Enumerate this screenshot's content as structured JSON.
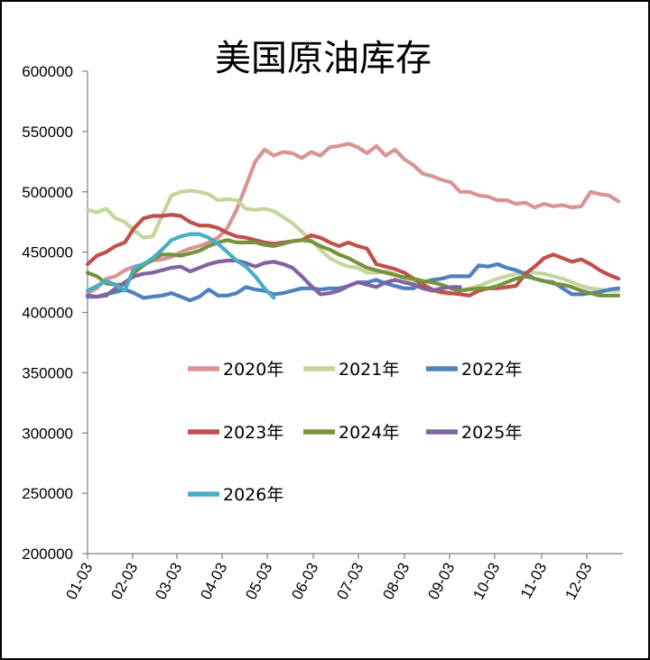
{
  "chart_data": {
    "type": "line",
    "title": "美国原油库存",
    "xlabel": "",
    "ylabel": "",
    "ylim": [
      200000,
      600000
    ],
    "yticks": [
      "600000",
      "550000",
      "500000",
      "450000",
      "400000",
      "350000",
      "300000",
      "250000",
      "200000"
    ],
    "xticks": [
      "01-03",
      "02-03",
      "03-03",
      "04-03",
      "05-03",
      "06-03",
      "07-03",
      "08-03",
      "09-03",
      "10-03",
      "11-03",
      "12-03"
    ],
    "grid": false,
    "legend_position": "center",
    "series": [
      {
        "name": "2020年",
        "color": "#d99594",
        "values": [
          416000,
          420000,
          428000,
          430000,
          435000,
          438000,
          440000,
          443000,
          444000,
          446000,
          450000,
          453000,
          455000,
          458000,
          462000,
          470000,
          485000,
          505000,
          525000,
          535000,
          530000,
          533000,
          532000,
          528000,
          533000,
          530000,
          537000,
          538000,
          540000,
          537000,
          532000,
          538000,
          530000,
          535000,
          527000,
          522000,
          515000,
          513000,
          510000,
          508000,
          500000,
          500000,
          497000,
          496000,
          493000,
          493000,
          490000,
          491000,
          487000,
          490000,
          488000,
          489000,
          487000,
          488000,
          500000,
          498000,
          497000,
          492000
        ]
      },
      {
        "name": "2021年",
        "color": "#c3d69b",
        "values": [
          485000,
          483000,
          486000,
          478000,
          475000,
          468000,
          462000,
          463000,
          480000,
          497000,
          500000,
          501000,
          500000,
          498000,
          493000,
          494000,
          493000,
          486000,
          485000,
          486000,
          484000,
          479000,
          474000,
          467000,
          460000,
          452000,
          445000,
          441000,
          438000,
          437000,
          433000,
          433000,
          434000,
          432000,
          428000,
          425000,
          420000,
          418000,
          416000,
          415000,
          418000,
          420000,
          422000,
          425000,
          428000,
          430000,
          432000,
          433000,
          433000,
          432000,
          430000,
          428000,
          425000,
          422000,
          420000,
          419000,
          418000,
          418000
        ]
      },
      {
        "name": "2022年",
        "color": "#4f81bd",
        "values": [
          413000,
          413000,
          415000,
          417000,
          419000,
          416000,
          412000,
          413000,
          414000,
          416000,
          413000,
          410000,
          413000,
          419000,
          414000,
          414000,
          416000,
          421000,
          419000,
          418000,
          415000,
          416000,
          418000,
          420000,
          420000,
          419000,
          420000,
          420000,
          422000,
          425000,
          425000,
          427000,
          424000,
          422000,
          420000,
          420000,
          425000,
          427000,
          428000,
          430000,
          430000,
          430000,
          439000,
          438000,
          440000,
          437000,
          435000,
          432000,
          428000,
          426000,
          425000,
          420000,
          415000,
          415000,
          416000,
          417000,
          419000,
          420000
        ]
      },
      {
        "name": "2023年",
        "color": "#c0504d",
        "values": [
          440000,
          447000,
          450000,
          455000,
          458000,
          470000,
          478000,
          480000,
          480000,
          481000,
          480000,
          475000,
          472000,
          472000,
          470000,
          466000,
          463000,
          462000,
          460000,
          458000,
          457000,
          458000,
          459000,
          460000,
          464000,
          462000,
          458000,
          455000,
          458000,
          455000,
          453000,
          440000,
          438000,
          436000,
          433000,
          428000,
          423000,
          419000,
          417000,
          416000,
          415000,
          414000,
          418000,
          420000,
          420000,
          421000,
          422000,
          432000,
          438000,
          445000,
          448000,
          445000,
          442000,
          444000,
          440000,
          435000,
          431000,
          428000
        ]
      },
      {
        "name": "2024年",
        "color": "#77933c",
        "values": [
          433000,
          430000,
          424000,
          423000,
          423000,
          433000,
          439000,
          444000,
          448000,
          448000,
          447000,
          449000,
          451000,
          455000,
          458000,
          460000,
          458000,
          458000,
          458000,
          456000,
          455000,
          457000,
          459000,
          460000,
          459000,
          455000,
          452000,
          448000,
          445000,
          441000,
          437000,
          435000,
          433000,
          431000,
          429000,
          428000,
          426000,
          425000,
          423000,
          420000,
          418000,
          419000,
          420000,
          420000,
          422000,
          425000,
          428000,
          430000,
          428000,
          426000,
          424000,
          423000,
          421000,
          418000,
          416000,
          414000,
          414000,
          414000
        ]
      },
      {
        "name": "2025年",
        "color": "#8064a2",
        "values": [
          414000,
          413000,
          414000,
          420000,
          425000,
          430000,
          432000,
          433000,
          435000,
          437000,
          438000,
          434000,
          437000,
          440000,
          442000,
          443000,
          443000,
          441000,
          438000,
          441000,
          442000,
          440000,
          437000,
          430000,
          422000,
          415000,
          416000,
          418000,
          422000,
          425000,
          423000,
          421000,
          425000,
          427000,
          425000,
          423000,
          420000,
          418000,
          420000,
          421000,
          421000
        ]
      },
      {
        "name": "2026年",
        "color": "#4bacc6",
        "values": [
          418000,
          422000,
          426000,
          423000,
          418000,
          437000,
          440000,
          445000,
          452000,
          460000,
          463000,
          465000,
          465000,
          462000,
          457000,
          450000,
          443000,
          438000,
          430000,
          420000,
          412000
        ]
      }
    ]
  }
}
